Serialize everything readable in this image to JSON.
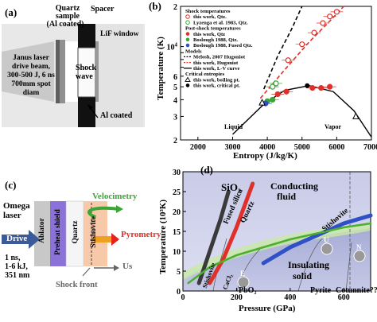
{
  "panel_a": {
    "label": "(a)",
    "quartz_label_1": "Quartz",
    "quartz_label_2": "sample",
    "quartz_label_3": "(Al coated)",
    "spacer_label": "Spacer",
    "lif_label": "LiF window",
    "drive_1": "Janus laser",
    "drive_2": "drive beam,",
    "drive_3": "300-500 J, 6 ns",
    "drive_4": "700mm spot diam",
    "shock_1": "Shock",
    "shock_2": "wave",
    "al_coated": "Al coated"
  },
  "panel_b": {
    "label": "(b)",
    "ylabel": "Temperature (K)",
    "xlabel": "Entropy (J/kg/K)",
    "legend": {
      "h_shock": "Shock temperatures",
      "shock_qtz": "this work, Qtz.",
      "lyzenga": "Lyzenga et al. 1983, Qtz.",
      "h_post": "Post-shock temperatures",
      "post_qtz": "this work, Qtz",
      "boslough_qtz": "Boslough 1988, Qtz.",
      "boslough_fused": "Boslough 1988, Fused Qtz.",
      "h_models": "Models",
      "melosh": "Melosh, 2007 Hugoniot",
      "hugoniot": "this work, Hugoniot",
      "lv": "this work, L-V curve",
      "h_crit": "Critical entropies",
      "boiling": "this work, boiling pt.",
      "critical": "this work, critical pt."
    },
    "liquid": "Liquid",
    "vapor": "Vapor",
    "colors": {
      "red": "#e0302a",
      "green": "#3aa635",
      "blue": "#3050c8",
      "black": "#000000"
    },
    "chart_data": {
      "type": "scatter",
      "xlim": [
        1500,
        7000
      ],
      "ylim": [
        2,
        20
      ],
      "yscale": "log",
      "x_ticks": [
        "2000",
        "3000",
        "4000",
        "5000",
        "6000",
        "7000"
      ],
      "y_ticks": [
        "2",
        "3",
        "4",
        "5",
        "6",
        "7",
        "8",
        "9",
        "10^4",
        "2"
      ],
      "series": [
        {
          "name": "this work, Qtz.",
          "marker": "open-circle",
          "color": "#e0302a",
          "points": [
            [
              4600,
              7.9
            ],
            [
              5000,
              10.4
            ],
            [
              5350,
              12.7
            ],
            [
              5600,
              15.0
            ],
            [
              5800,
              16.8
            ],
            [
              6000,
              18.2
            ]
          ]
        },
        {
          "name": "Lyzenga et al. 1983, Qtz.",
          "marker": "open-circle",
          "color": "#3aa635",
          "points": [
            [
              4150,
              5.0
            ],
            [
              4250,
              5.3
            ]
          ]
        },
        {
          "name": "this work, Qtz",
          "marker": "filled-circle",
          "color": "#e0302a",
          "points": [
            [
              5300,
              4.9
            ],
            [
              5550,
              4.9
            ],
            [
              5800,
              5.0
            ],
            [
              4550,
              4.6
            ],
            [
              4300,
              4.4
            ]
          ]
        },
        {
          "name": "Boslough 1988, Qtz.",
          "marker": "filled-circle",
          "color": "#3aa635",
          "points": [
            [
              4000,
              3.9
            ],
            [
              4150,
              4.0
            ]
          ]
        },
        {
          "name": "Boslough 1988, Fused Qtz.",
          "marker": "filled-circle",
          "color": "#3050c8",
          "points": [
            [
              3950,
              3.75
            ]
          ]
        }
      ],
      "curves": [
        {
          "name": "Melosh, 2007 Hugoniot",
          "style": "dashed",
          "color": "#000000",
          "points": [
            [
              3900,
              4.8
            ],
            [
              4300,
              8.5
            ],
            [
              4700,
              13.5
            ],
            [
              5000,
              20
            ]
          ]
        },
        {
          "name": "this work, Hugoniot",
          "style": "dashed",
          "color": "#e0302a",
          "points": [
            [
              3800,
              4.1
            ],
            [
              4500,
              6.7
            ],
            [
              5200,
              10.8
            ],
            [
              5800,
              15.5
            ],
            [
              6200,
              20
            ]
          ]
        },
        {
          "name": "this work, L-V curve",
          "style": "solid",
          "color": "#000000",
          "points": [
            [
              3000,
              2.2
            ],
            [
              3900,
              3.7
            ],
            [
              4500,
              4.7
            ],
            [
              5200,
              5.1
            ],
            [
              5900,
              4.6
            ],
            [
              6500,
              3.3
            ],
            [
              7000,
              2.1
            ]
          ]
        }
      ],
      "critical_points": [
        {
          "name": "this work, boiling pt.",
          "marker": "open-triangle",
          "points": [
            [
              3850,
              3.8
            ],
            [
              6550,
              3.0
            ]
          ]
        },
        {
          "name": "this work, critical pt.",
          "marker": "filled-circle",
          "points": [
            [
              5150,
              5.1
            ]
          ]
        }
      ]
    }
  },
  "panel_c": {
    "label": "(c)",
    "omega_1": "Omega",
    "omega_2": "laser",
    "drive": "Drive",
    "spec_1": "1 ns,",
    "spec_2": "1-6 kJ,",
    "spec_3": "351 nm",
    "ablator": "Ablator",
    "preheat": "Preheat shield",
    "quartz": "Quartz",
    "stishovite": "Stishovite",
    "velocimetry": "Velocimetry",
    "pyrometry": "Pyrometry",
    "us": "Us",
    "shock_front": "Shock front"
  },
  "panel_d": {
    "label": "(d)",
    "ylabel": "Temperature (10³K)",
    "xlabel": "Pressure (GPa)",
    "sio2": "SiO₂",
    "conducting_1": "Conducting",
    "conducting_2": "fluid",
    "fused_silica": "Fused silica",
    "quartz": "Quartz",
    "stishovite": "Stishovite",
    "insulating_1": "Insulating",
    "insulating_2": "solid",
    "e": "E",
    "u": "U",
    "n": "N",
    "pbo2": "PbO₂",
    "cacl2": "CaCl₂",
    "stishovite_small": "Stishovite",
    "pyrite": "Pyrite",
    "cotunnite": "Cotunnite??",
    "chart_data": {
      "type": "line",
      "xlim": [
        0,
        700
      ],
      "ylim": [
        0,
        30
      ],
      "x_ticks": [
        "0",
        "200",
        "400",
        "600"
      ],
      "y_ticks": [
        "0",
        "5",
        "10",
        "15",
        "20",
        "25",
        "30"
      ],
      "series": [
        {
          "name": "Fused silica",
          "color": "#3a3a3a",
          "points": [
            [
              60,
              2
            ],
            [
              100,
              10
            ],
            [
              140,
              18
            ],
            [
              170,
              25
            ]
          ]
        },
        {
          "name": "Quartz",
          "color": "#e0302a",
          "points": [
            [
              100,
              2
            ],
            [
              150,
              8
            ],
            [
              200,
              16
            ],
            [
              260,
              27
            ]
          ]
        },
        {
          "name": "Stishovite",
          "color": "#3050c8",
          "points": [
            [
              300,
              7
            ],
            [
              400,
              11
            ],
            [
              500,
              14
            ],
            [
              600,
              17
            ],
            [
              700,
              19
            ]
          ]
        },
        {
          "name": "melt",
          "color": "#4caf2e",
          "points": [
            [
              20,
              2
            ],
            [
              100,
              6
            ],
            [
              200,
              9
            ],
            [
              400,
              13
            ],
            [
              600,
              16
            ],
            [
              700,
              17
            ]
          ]
        }
      ]
    }
  }
}
